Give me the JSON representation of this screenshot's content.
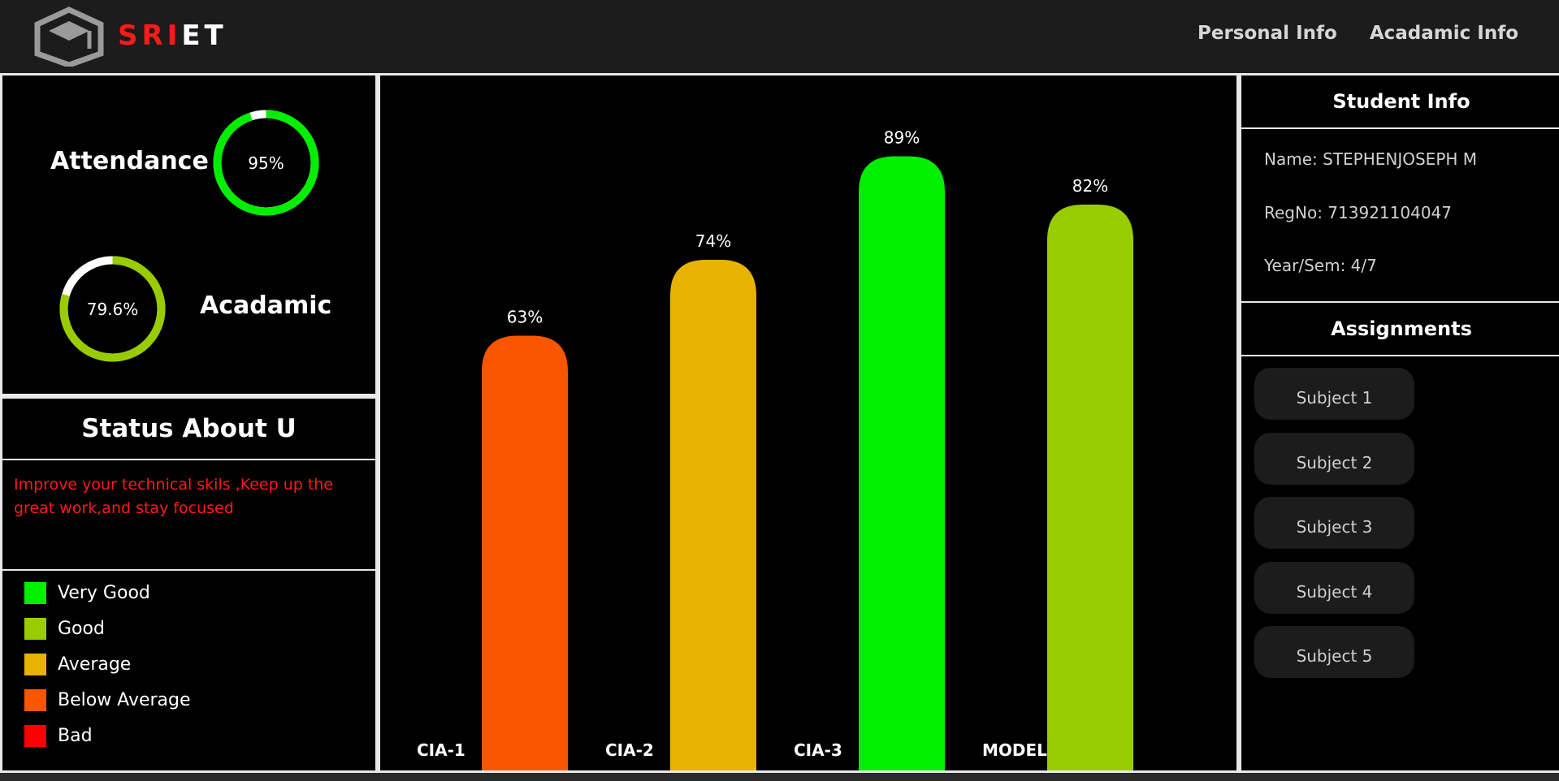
{
  "header": {
    "brand_red": "SRI",
    "brand_white": "ET",
    "nav": [
      "Personal Info",
      "Acadamic Info"
    ]
  },
  "progress": {
    "attendance": {
      "label": "Attendance",
      "value_text": "95%",
      "value": 95,
      "color": "#00ee00"
    },
    "academic": {
      "label": "Acadamic",
      "value_text": "79.6%",
      "value": 79.6,
      "color": "#99cc00"
    }
  },
  "status": {
    "title": "Status About U",
    "message": "Improve your technical skils ,Keep up the great work,and stay focused",
    "legend": [
      {
        "label": "Very Good",
        "color": "#00ee00"
      },
      {
        "label": "Good",
        "color": "#99cc00"
      },
      {
        "label": "Average",
        "color": "#e8b300"
      },
      {
        "label": "Below Average",
        "color": "#fa5500"
      },
      {
        "label": "Bad",
        "color": "#ff0000"
      }
    ]
  },
  "chart_data": {
    "type": "bar",
    "categories": [
      "CIA-1",
      "CIA-2",
      "CIA-3",
      "MODEL"
    ],
    "values": [
      63,
      74,
      89,
      82
    ],
    "data_labels": [
      "63%",
      "74%",
      "89%",
      "82%"
    ],
    "colors": [
      "#fa5500",
      "#e8b300",
      "#00ee00",
      "#99cc00"
    ],
    "title": "",
    "xlabel": "",
    "ylabel": "",
    "ylim": [
      0,
      100
    ],
    "grid": false
  },
  "student": {
    "title": "Student Info",
    "name": "Name: STEPHENJOSEPH M",
    "regno": "RegNo: 713921104047",
    "yearsem": "Year/Sem: 4/7"
  },
  "assignments": {
    "title": "Assignments",
    "subjects": [
      "Subject 1",
      "Subject 2",
      "Subject 3",
      "Subject 4",
      "Subject 5"
    ]
  }
}
